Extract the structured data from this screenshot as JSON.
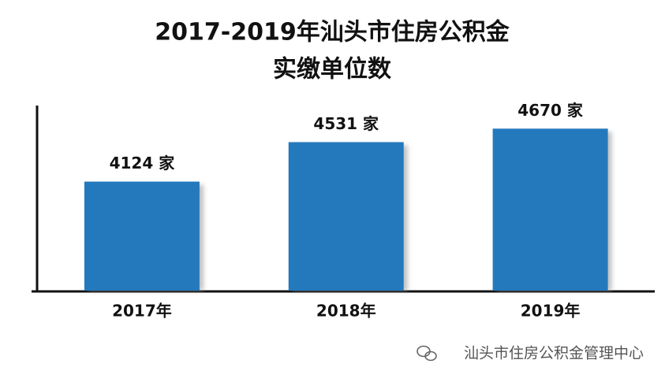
{
  "chart_data": {
    "type": "bar",
    "title": [
      "2017-2019年汕头市住房公积金",
      "实缴单位数"
    ],
    "categories": [
      "2017年",
      "2018年",
      "2019年"
    ],
    "values": [
      4124,
      4531,
      4670
    ],
    "value_labels": [
      "4124 家",
      "4531 家",
      "4670 家"
    ],
    "color": "#2479bd",
    "ylim": [
      3000,
      4900
    ],
    "watermark": "汕头市住房公积金管理中心"
  }
}
